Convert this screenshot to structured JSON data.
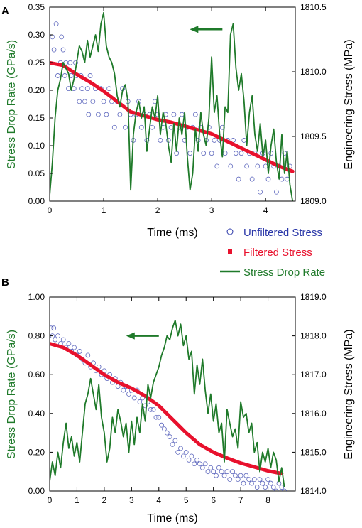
{
  "figure": {
    "legend": [
      {
        "label": "Unfiltered Stress",
        "color": "#2a37a8",
        "marker": "hollow-circle"
      },
      {
        "label": "Filtered Stress",
        "color": "#e8112d",
        "marker": "square"
      },
      {
        "label": "Stress Drop Rate",
        "color": "#1f7a2a",
        "marker": "line"
      }
    ]
  },
  "chart_data": [
    {
      "panel_label": "A",
      "type": "line",
      "xlabel": "Time (ms)",
      "ylabel_left": "Stress Drop Rate (GPa/s)",
      "ylabel_right": "Engineering Stress (MPa)",
      "xlim": [
        0,
        4.55
      ],
      "ylim_left": [
        0,
        0.35
      ],
      "ylim_right": [
        1809.0,
        1810.5
      ],
      "x_ticks": [
        "0",
        "1",
        "2",
        "3",
        "4"
      ],
      "y_left_ticks": [
        "0.00",
        "0.05",
        "0.10",
        "0.15",
        "0.20",
        "0.25",
        "0.30",
        "0.35"
      ],
      "y_right_ticks": [
        "1809.0",
        "1809.5",
        "1810.0",
        "1810.5"
      ],
      "arrow": {
        "x": 3.2,
        "y": 0.31,
        "direction": "left"
      },
      "series": [
        {
          "name": "Stress Drop Rate",
          "axis": "left",
          "color": "#1f7a2a",
          "x": [
            0.0,
            0.05,
            0.1,
            0.15,
            0.2,
            0.25,
            0.3,
            0.35,
            0.4,
            0.45,
            0.5,
            0.55,
            0.6,
            0.65,
            0.7,
            0.75,
            0.8,
            0.85,
            0.9,
            0.95,
            1.0,
            1.05,
            1.1,
            1.15,
            1.2,
            1.25,
            1.3,
            1.35,
            1.4,
            1.45,
            1.5,
            1.55,
            1.6,
            1.65,
            1.7,
            1.75,
            1.8,
            1.85,
            1.9,
            1.95,
            2.0,
            2.05,
            2.1,
            2.15,
            2.2,
            2.25,
            2.3,
            2.35,
            2.4,
            2.45,
            2.5,
            2.55,
            2.6,
            2.65,
            2.7,
            2.75,
            2.8,
            2.85,
            2.9,
            2.95,
            3.0,
            3.05,
            3.1,
            3.15,
            3.2,
            3.25,
            3.3,
            3.35,
            3.4,
            3.45,
            3.5,
            3.55,
            3.6,
            3.65,
            3.7,
            3.75,
            3.8,
            3.85,
            3.9,
            3.95,
            4.0,
            4.05,
            4.1,
            4.15,
            4.2,
            4.25,
            4.3,
            4.35,
            4.4,
            4.45,
            4.5
          ],
          "y": [
            0.01,
            0.07,
            0.15,
            0.2,
            0.22,
            0.25,
            0.24,
            0.23,
            0.2,
            0.22,
            0.25,
            0.28,
            0.27,
            0.25,
            0.29,
            0.26,
            0.28,
            0.3,
            0.27,
            0.32,
            0.34,
            0.28,
            0.26,
            0.25,
            0.23,
            0.19,
            0.17,
            0.2,
            0.21,
            0.18,
            0.02,
            0.12,
            0.16,
            0.18,
            0.15,
            0.17,
            0.09,
            0.13,
            0.17,
            0.15,
            0.19,
            0.12,
            0.16,
            0.14,
            0.1,
            0.07,
            0.14,
            0.09,
            0.15,
            0.12,
            0.16,
            0.08,
            0.02,
            0.05,
            0.13,
            0.09,
            0.16,
            0.12,
            0.1,
            0.15,
            0.26,
            0.16,
            0.19,
            0.12,
            0.08,
            0.17,
            0.16,
            0.3,
            0.32,
            0.24,
            0.2,
            0.23,
            0.18,
            0.1,
            0.16,
            0.19,
            0.12,
            0.09,
            0.14,
            0.08,
            0.11,
            0.05,
            0.1,
            0.13,
            0.07,
            0.04,
            0.12,
            0.05,
            0.09,
            0.03,
            0.0
          ]
        },
        {
          "name": "Filtered Stress",
          "axis": "right",
          "color": "#e8112d",
          "x": [
            0.0,
            0.25,
            0.5,
            0.75,
            1.0,
            1.25,
            1.5,
            1.75,
            2.0,
            2.25,
            2.5,
            2.75,
            3.0,
            3.25,
            3.5,
            3.75,
            4.0,
            4.25,
            4.5
          ],
          "y": [
            1810.07,
            1810.05,
            1809.98,
            1809.92,
            1809.85,
            1809.77,
            1809.69,
            1809.66,
            1809.63,
            1809.61,
            1809.58,
            1809.55,
            1809.52,
            1809.47,
            1809.42,
            1809.37,
            1809.32,
            1809.27,
            1809.23
          ]
        },
        {
          "name": "Unfiltered Stress",
          "axis": "right",
          "color": "#2a37a8",
          "x": [
            0.05,
            0.08,
            0.12,
            0.15,
            0.2,
            0.22,
            0.25,
            0.28,
            0.3,
            0.35,
            0.38,
            0.4,
            0.45,
            0.48,
            0.5,
            0.55,
            0.58,
            0.6,
            0.65,
            0.7,
            0.72,
            0.75,
            0.8,
            0.85,
            0.9,
            0.95,
            1.0,
            1.05,
            1.1,
            1.15,
            1.2,
            1.25,
            1.3,
            1.35,
            1.4,
            1.45,
            1.5,
            1.55,
            1.6,
            1.65,
            1.7,
            1.75,
            1.8,
            1.85,
            1.9,
            1.95,
            2.0,
            2.05,
            2.1,
            2.15,
            2.2,
            2.25,
            2.3,
            2.35,
            2.4,
            2.45,
            2.5,
            2.55,
            2.6,
            2.65,
            2.7,
            2.75,
            2.8,
            2.85,
            2.9,
            2.95,
            3.0,
            3.05,
            3.1,
            3.15,
            3.2,
            3.25,
            3.3,
            3.35,
            3.4,
            3.45,
            3.5,
            3.55,
            3.6,
            3.65,
            3.7,
            3.75,
            3.8,
            3.85,
            3.9,
            3.95,
            4.0,
            4.05,
            4.1,
            4.15,
            4.2,
            4.25,
            4.3,
            4.35,
            4.4,
            4.45
          ],
          "y": [
            1810.27,
            1810.17,
            1810.37,
            1809.97,
            1810.07,
            1810.27,
            1810.17,
            1809.97,
            1810.07,
            1809.87,
            1810.07,
            1809.97,
            1809.87,
            1810.07,
            1809.97,
            1809.77,
            1809.97,
            1809.87,
            1809.77,
            1809.87,
            1809.67,
            1809.97,
            1809.77,
            1809.87,
            1809.67,
            1809.87,
            1809.77,
            1809.67,
            1809.87,
            1809.77,
            1809.57,
            1809.77,
            1809.67,
            1809.87,
            1809.57,
            1809.77,
            1809.67,
            1809.47,
            1809.67,
            1809.77,
            1809.57,
            1809.67,
            1809.47,
            1809.67,
            1809.57,
            1809.77,
            1809.67,
            1809.47,
            1809.57,
            1809.67,
            1809.47,
            1809.57,
            1809.67,
            1809.37,
            1809.57,
            1809.67,
            1809.47,
            1809.57,
            1809.37,
            1809.57,
            1809.67,
            1809.47,
            1809.57,
            1809.37,
            1809.47,
            1809.57,
            1809.37,
            1809.47,
            1809.27,
            1809.47,
            1809.57,
            1809.37,
            1809.47,
            1809.27,
            1809.47,
            1809.37,
            1809.17,
            1809.37,
            1809.47,
            1809.27,
            1809.37,
            1809.17,
            1809.37,
            1809.27,
            1809.07,
            1809.37,
            1809.27,
            1809.17,
            1809.37,
            1809.27,
            1809.07,
            1809.27,
            1809.17,
            1809.37,
            1809.17,
            1809.27
          ]
        }
      ]
    },
    {
      "panel_label": "B",
      "type": "line",
      "xlabel": "Time (ms)",
      "ylabel_left": "Stress Drop Rate (GPa/s)",
      "ylabel_right": "Engineering Stress (MPa)",
      "xlim": [
        0,
        9
      ],
      "ylim_left": [
        0,
        1.0
      ],
      "ylim_right": [
        1814.0,
        1819.0
      ],
      "x_ticks": [
        "0",
        "1",
        "2",
        "3",
        "4",
        "5",
        "6",
        "7",
        "8"
      ],
      "y_left_ticks": [
        "0.00",
        "0.20",
        "0.40",
        "0.60",
        "0.80",
        "1.00"
      ],
      "y_right_ticks": [
        "1814.0",
        "1815.0",
        "1816.0",
        "1817.0",
        "1818.0",
        "1819.0"
      ],
      "arrow": {
        "x": 4.0,
        "y": 0.8,
        "direction": "left"
      },
      "series": [
        {
          "name": "Stress Drop Rate",
          "axis": "left",
          "color": "#1f7a2a",
          "x": [
            0.0,
            0.1,
            0.2,
            0.3,
            0.4,
            0.5,
            0.6,
            0.7,
            0.8,
            0.9,
            1.0,
            1.1,
            1.2,
            1.3,
            1.4,
            1.5,
            1.6,
            1.7,
            1.8,
            1.9,
            2.0,
            2.1,
            2.2,
            2.3,
            2.4,
            2.5,
            2.6,
            2.7,
            2.8,
            2.9,
            3.0,
            3.1,
            3.2,
            3.3,
            3.4,
            3.5,
            3.6,
            3.7,
            3.8,
            3.9,
            4.0,
            4.1,
            4.2,
            4.3,
            4.4,
            4.5,
            4.6,
            4.7,
            4.8,
            4.9,
            5.0,
            5.1,
            5.2,
            5.3,
            5.4,
            5.5,
            5.6,
            5.7,
            5.8,
            5.9,
            6.0,
            6.1,
            6.2,
            6.3,
            6.4,
            6.5,
            6.6,
            6.7,
            6.8,
            6.9,
            7.0,
            7.1,
            7.2,
            7.3,
            7.4,
            7.5,
            7.6,
            7.7,
            7.8,
            7.9,
            8.0,
            8.1,
            8.2,
            8.3,
            8.4,
            8.5,
            8.6
          ],
          "y": [
            0.05,
            0.15,
            0.08,
            0.2,
            0.12,
            0.25,
            0.35,
            0.22,
            0.28,
            0.18,
            0.25,
            0.15,
            0.3,
            0.45,
            0.5,
            0.58,
            0.5,
            0.42,
            0.55,
            0.38,
            0.3,
            0.15,
            0.22,
            0.38,
            0.3,
            0.42,
            0.36,
            0.28,
            0.35,
            0.2,
            0.36,
            0.24,
            0.38,
            0.3,
            0.45,
            0.36,
            0.55,
            0.48,
            0.56,
            0.6,
            0.64,
            0.7,
            0.74,
            0.8,
            0.78,
            0.84,
            0.88,
            0.8,
            0.86,
            0.75,
            0.8,
            0.68,
            0.72,
            0.5,
            0.65,
            0.55,
            0.68,
            0.52,
            0.4,
            0.5,
            0.36,
            0.45,
            0.3,
            0.35,
            0.15,
            0.42,
            0.35,
            0.28,
            0.32,
            0.22,
            0.46,
            0.38,
            0.4,
            0.3,
            0.35,
            0.2,
            0.25,
            0.1,
            0.2,
            0.15,
            0.22,
            0.12,
            0.2,
            0.16,
            0.05,
            0.12,
            0.02
          ]
        },
        {
          "name": "Filtered Stress",
          "axis": "right",
          "color": "#e8112d",
          "x": [
            0.0,
            0.5,
            1.0,
            1.5,
            2.0,
            2.5,
            3.0,
            3.5,
            4.0,
            4.5,
            5.0,
            5.5,
            6.0,
            6.5,
            7.0,
            7.5,
            8.0,
            8.5
          ],
          "y": [
            1817.8,
            1817.7,
            1817.5,
            1817.25,
            1817.0,
            1816.8,
            1816.65,
            1816.45,
            1816.2,
            1815.85,
            1815.5,
            1815.2,
            1815.0,
            1814.85,
            1814.72,
            1814.62,
            1814.52,
            1814.45
          ]
        },
        {
          "name": "Unfiltered Stress",
          "axis": "right",
          "color": "#2a37a8",
          "x": [
            0.05,
            0.1,
            0.15,
            0.2,
            0.3,
            0.4,
            0.5,
            0.6,
            0.7,
            0.8,
            0.9,
            1.0,
            1.1,
            1.2,
            1.3,
            1.4,
            1.5,
            1.6,
            1.7,
            1.8,
            1.9,
            2.0,
            2.1,
            2.2,
            2.3,
            2.4,
            2.5,
            2.6,
            2.7,
            2.8,
            2.9,
            3.0,
            3.1,
            3.2,
            3.3,
            3.4,
            3.5,
            3.6,
            3.7,
            3.8,
            3.9,
            4.0,
            4.1,
            4.2,
            4.3,
            4.4,
            4.5,
            4.6,
            4.7,
            4.8,
            4.9,
            5.0,
            5.1,
            5.2,
            5.3,
            5.4,
            5.5,
            5.6,
            5.7,
            5.8,
            5.9,
            6.0,
            6.1,
            6.2,
            6.3,
            6.4,
            6.5,
            6.6,
            6.7,
            6.8,
            6.9,
            7.0,
            7.1,
            7.2,
            7.3,
            7.4,
            7.5,
            7.6,
            7.7,
            7.8,
            7.9,
            8.0,
            8.1,
            8.2,
            8.3,
            8.4,
            8.5,
            8.6
          ],
          "y": [
            1818.2,
            1818.0,
            1818.2,
            1817.9,
            1818.0,
            1817.8,
            1817.9,
            1817.7,
            1817.8,
            1817.6,
            1817.7,
            1817.5,
            1817.6,
            1817.4,
            1817.3,
            1817.5,
            1817.2,
            1817.3,
            1817.1,
            1817.2,
            1817.0,
            1817.1,
            1816.9,
            1817.0,
            1816.8,
            1816.9,
            1816.7,
            1816.8,
            1816.6,
            1816.7,
            1816.5,
            1816.6,
            1816.4,
            1816.6,
            1816.3,
            1816.4,
            1816.2,
            1816.3,
            1816.1,
            1816.1,
            1815.9,
            1815.9,
            1815.7,
            1815.6,
            1815.5,
            1815.4,
            1815.2,
            1815.3,
            1815.0,
            1815.1,
            1814.9,
            1815.0,
            1814.8,
            1814.9,
            1814.7,
            1814.8,
            1814.7,
            1814.6,
            1814.7,
            1814.5,
            1814.6,
            1814.5,
            1814.4,
            1814.6,
            1814.5,
            1814.4,
            1814.5,
            1814.3,
            1814.5,
            1814.4,
            1814.3,
            1814.4,
            1814.2,
            1814.4,
            1814.3,
            1814.2,
            1814.3,
            1814.1,
            1814.3,
            1814.2,
            1814.1,
            1814.3,
            1814.2,
            1814.1,
            1814.0,
            1814.2,
            1814.1,
            1814.0
          ]
        }
      ]
    }
  ]
}
